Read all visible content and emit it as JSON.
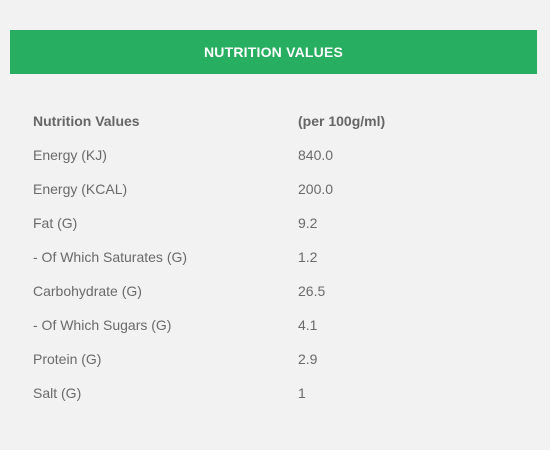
{
  "header": {
    "title": "NUTRITION VALUES"
  },
  "table": {
    "columns": [
      "Nutrition Values",
      "(per 100g/ml)"
    ],
    "rows": [
      {
        "name": "Energy (KJ)",
        "value": "840.0"
      },
      {
        "name": "Energy (KCAL)",
        "value": "200.0"
      },
      {
        "name": "Fat (G)",
        "value": "9.2"
      },
      {
        "name": "- Of Which Saturates (G)",
        "value": "1.2"
      },
      {
        "name": "Carbohydrate (G)",
        "value": "26.5"
      },
      {
        "name": "- Of Which Sugars (G)",
        "value": "4.1"
      },
      {
        "name": "Protein (G)",
        "value": "2.9"
      },
      {
        "name": "Salt (G)",
        "value": "1"
      }
    ]
  },
  "colors": {
    "accent": "#27ae60",
    "background": "#f2f2f2",
    "text": "#6a6a6a"
  }
}
